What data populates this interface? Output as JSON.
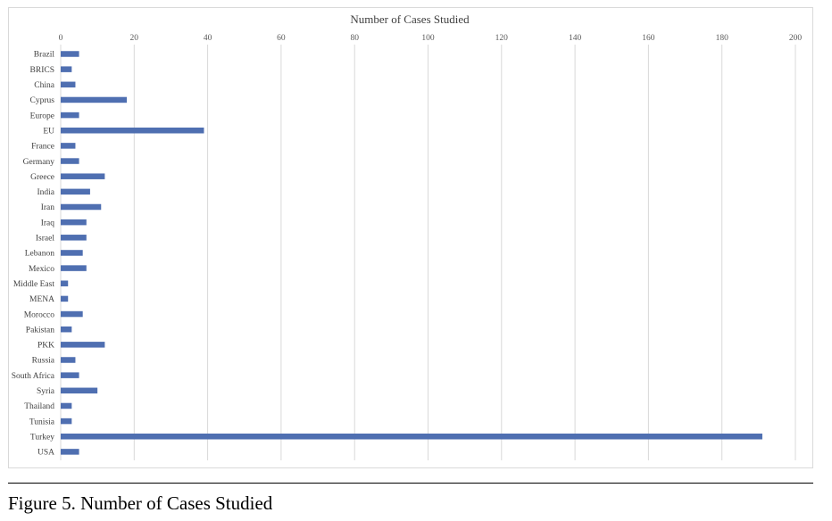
{
  "caption": "Figure 5. Number of Cases Studied",
  "colors": {
    "bar": "#4f6fb1",
    "grid": "#d9d9d9"
  },
  "chart_data": {
    "type": "bar",
    "orientation": "horizontal",
    "title": "Number of Cases Studied",
    "xlabel": "",
    "ylabel": "",
    "xlim": [
      0,
      200
    ],
    "xticks": [
      0,
      20,
      40,
      60,
      80,
      100,
      120,
      140,
      160,
      180,
      200
    ],
    "x_axis_position": "top",
    "grid": true,
    "legend": "none",
    "categories": [
      "Brazil",
      "BRICS",
      "China",
      "Cyprus",
      "Europe",
      "EU",
      "France",
      "Germany",
      "Greece",
      "India",
      "Iran",
      "Iraq",
      "Israel",
      "Lebanon",
      "Mexico",
      "Middle East",
      "MENA",
      "Morocco",
      "Pakistan",
      "PKK",
      "Russia",
      "South Africa",
      "Syria",
      "Thailand",
      "Tunisia",
      "Turkey",
      "USA"
    ],
    "values": [
      5,
      3,
      4,
      18,
      5,
      39,
      4,
      5,
      12,
      8,
      11,
      7,
      7,
      6,
      7,
      2,
      2,
      6,
      3,
      12,
      4,
      5,
      10,
      3,
      3,
      191,
      5
    ]
  }
}
